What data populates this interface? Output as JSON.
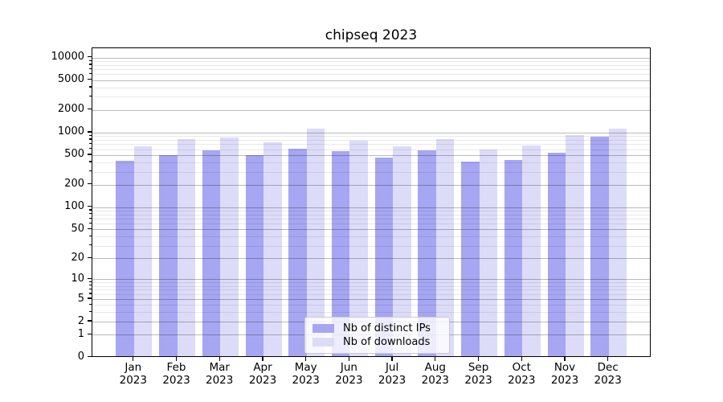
{
  "chart_data": {
    "type": "bar",
    "title": "chipseq 2023",
    "categories": [
      "Jan",
      "Feb",
      "Mar",
      "Apr",
      "May",
      "Jun",
      "Jul",
      "Aug",
      "Sep",
      "Oct",
      "Nov",
      "Dec"
    ],
    "category_year": "2023",
    "series": [
      {
        "name": "Nb of distinct IPs",
        "color": "#a6a6f2",
        "values": [
          410,
          495,
          565,
          490,
          595,
          550,
          455,
          570,
          400,
          420,
          535,
          875
        ]
      },
      {
        "name": "Nb of downloads",
        "color": "#dcdcf9",
        "values": [
          640,
          805,
          850,
          725,
          1105,
          760,
          645,
          815,
          580,
          660,
          920,
          1105
        ]
      }
    ],
    "xlabel": "",
    "ylabel": "",
    "y_scale": "log1p",
    "ylim": [
      0,
      13400
    ],
    "y_major_ticks": [
      0,
      1,
      2,
      5,
      10,
      20,
      50,
      100,
      200,
      500,
      1000,
      2000,
      5000,
      10000
    ],
    "y_minor_ticks": [
      3,
      4,
      6,
      7,
      8,
      9,
      30,
      40,
      60,
      70,
      80,
      90,
      300,
      400,
      600,
      700,
      800,
      900,
      3000,
      4000,
      6000,
      7000,
      8000,
      9000
    ],
    "grid": true,
    "legend_position": "lower center"
  },
  "legend": {
    "items": [
      {
        "label": "Nb of distinct IPs",
        "color": "#a6a6f2"
      },
      {
        "label": "Nb of downloads",
        "color": "#dcdcf9"
      }
    ]
  },
  "colors": {
    "background": "#ffffff",
    "axis": "#000000",
    "grid_major": "#bababa",
    "grid_minor": "#e8e8e8",
    "bar_ips": "#a6a6f2",
    "bar_downloads": "#dcdcf9"
  }
}
